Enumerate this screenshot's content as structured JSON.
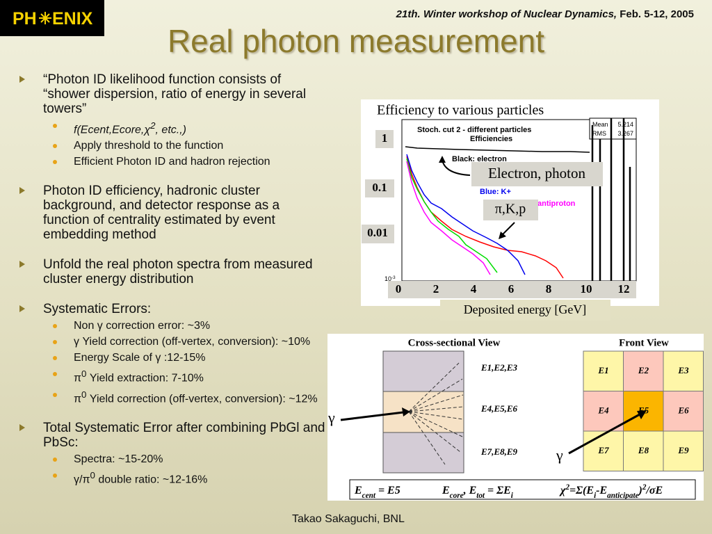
{
  "header": {
    "logo": [
      "PH",
      "ENIX"
    ],
    "conference": "21th. Winter workshop of Nuclear Dynamics,",
    "date": "Feb. 5-12, 2005"
  },
  "title": "Real photon measurement",
  "bullets": [
    {
      "text": "“Photon ID likelihood function consists of “shower dispersion, ratio of energy in several towers”",
      "items": [
        [
          "f(Ecent,Ecore,χ",
          {
            "sup": "2"
          },
          ", etc.,)"
        ],
        "Apply threshold to the function",
        "Efficient Photon ID and hadron rejection"
      ]
    },
    {
      "text": "Photon ID efficiency, hadronic cluster background, and detector response as a function of centrality estimated by event embedding method"
    },
    {
      "text": "Unfold the real photon spectra from measured cluster energy distribution"
    },
    {
      "text": "Systematic Errors:",
      "items": [
        "Non γ correction error: ~3%",
        "γ Yield correction (off-vertex, conversion): ~10%",
        "Energy Scale of γ :12-15%",
        [
          "π",
          {
            "sup": "0"
          },
          " Yield extraction: 7-10%"
        ],
        [
          "π",
          {
            "sup": "0"
          },
          " Yield correction (off-vertex, conversion): ~12%"
        ]
      ]
    },
    {
      "text": "Total Systematic Error after combining PbGl and PbSc:",
      "items": [
        "Spectra: ~15-20%",
        [
          "γ/π",
          {
            "sup": "0"
          },
          " double ratio: ~12-16%"
        ]
      ]
    }
  ],
  "efficiency_plot": {
    "caption": "Efficiency to various particles",
    "title": "Stoch. cut 2 - different particles",
    "subtitle": "Efficiencies",
    "stats": [
      [
        "Mean",
        "5.214"
      ],
      [
        "RMS",
        "3.267"
      ]
    ],
    "legend": [
      "Black: electron",
      "Blue: K+",
      "antiproton"
    ],
    "y_labels": [
      "1",
      "0.1",
      "0.01"
    ],
    "y_min_label": [
      "10",
      {
        "sup": "-3"
      }
    ],
    "x_labels": [
      "0",
      "2",
      "4",
      "6",
      "8",
      "10",
      "12"
    ],
    "x_title": "Deposited energy [GeV]",
    "callouts": [
      "Electron, photon",
      "π,K,p"
    ]
  },
  "detector": {
    "cross_title": "Cross-sectional View",
    "layers": [
      "E1,E2,E3",
      "E4,E5,E6",
      "E7,E8,E9"
    ],
    "gamma": "γ",
    "front_title": "Front View",
    "cells": [
      "E1",
      "E2",
      "E3",
      "E4",
      "E5",
      "E6",
      "E7",
      "E8",
      "E9"
    ],
    "formulas": [
      [
        "E",
        {
          "sub": "cent"
        },
        " = E5"
      ],
      [
        "E",
        {
          "sub": "core"
        },
        ", E",
        {
          "sub": "tot"
        },
        " = ΣE",
        {
          "sub": "i"
        }
      ],
      [
        "χ",
        {
          "sup": "2"
        },
        "=Σ(E",
        {
          "sub": "i"
        },
        "-E",
        {
          "sub": "anticipate"
        },
        ")",
        {
          "sup": "2"
        },
        "/σE"
      ]
    ]
  },
  "footer": "Takao Sakaguchi, BNL"
}
